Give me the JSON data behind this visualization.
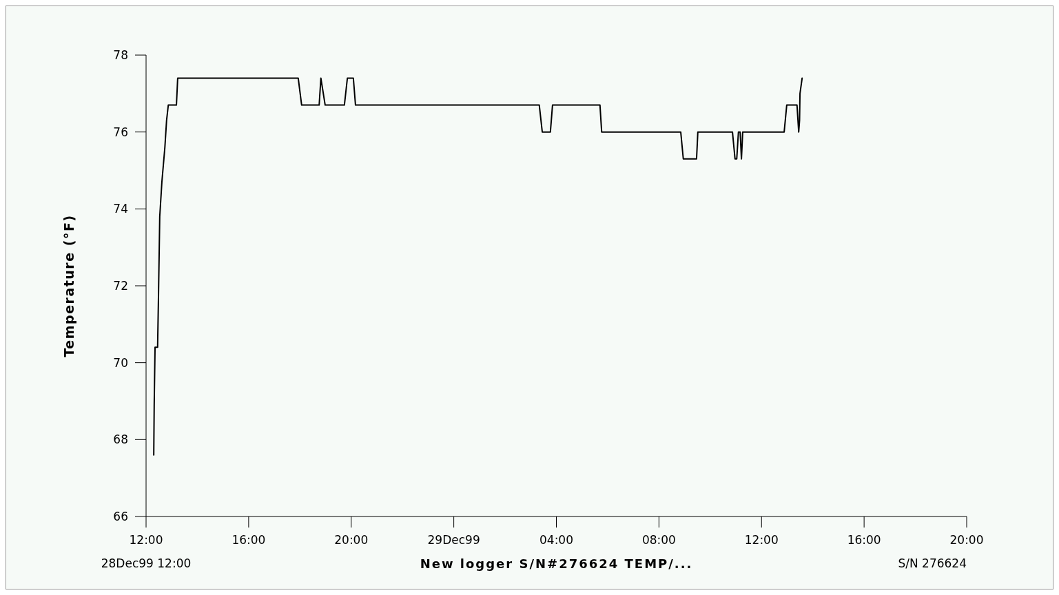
{
  "chart_data": {
    "type": "line",
    "xlabel": "New logger S/N#276624 TEMP/...",
    "ylabel": "Temperature (°F)",
    "annotations": [
      "28Dec99 12:00",
      "S/N 276624"
    ],
    "x": [
      "1999-12-28T12:18",
      "1999-12-28T12:19",
      "1999-12-28T12:21",
      "1999-12-28T12:27",
      "1999-12-28T12:29",
      "1999-12-28T12:32",
      "1999-12-28T12:37",
      "1999-12-28T12:44",
      "1999-12-28T12:48",
      "1999-12-28T12:52",
      "1999-12-28T13:11",
      "1999-12-28T13:14",
      "1999-12-28T17:56",
      "1999-12-28T18:04",
      "1999-12-28T18:45",
      "1999-12-28T18:49",
      "1999-12-28T18:59",
      "1999-12-28T19:44",
      "1999-12-28T19:51",
      "1999-12-28T20:05",
      "1999-12-28T20:10",
      "1999-12-29T03:20",
      "1999-12-29T03:27",
      "1999-12-29T03:46",
      "1999-12-29T03:51",
      "1999-12-29T05:42",
      "1999-12-29T05:46",
      "1999-12-29T08:51",
      "1999-12-29T08:57",
      "1999-12-29T09:28",
      "1999-12-29T09:31",
      "1999-12-29T10:52",
      "1999-12-29T10:58",
      "1999-12-29T11:02",
      "1999-12-29T11:06",
      "1999-12-29T11:10",
      "1999-12-29T11:13",
      "1999-12-29T11:16",
      "1999-12-29T12:53",
      "1999-12-29T12:59",
      "1999-12-29T13:23",
      "1999-12-29T13:27",
      "1999-12-29T13:29",
      "1999-12-29T13:30",
      "1999-12-29T13:35"
    ],
    "series": [
      {
        "color": "#000000",
        "values": [
          67.6,
          68.9,
          70.4,
          70.4,
          71.7,
          73.8,
          74.7,
          75.6,
          76.3,
          76.7,
          76.7,
          77.4,
          77.4,
          76.7,
          76.7,
          77.4,
          76.7,
          76.7,
          77.4,
          77.4,
          76.7,
          76.7,
          76.0,
          76.0,
          76.7,
          76.7,
          76.0,
          76.0,
          75.3,
          75.3,
          76.0,
          76.0,
          75.3,
          75.3,
          76.0,
          76.0,
          75.3,
          76.0,
          76.0,
          76.7,
          76.7,
          76.0,
          76.3,
          77.0,
          77.4
        ]
      }
    ],
    "xlim": [
      "1999-12-28T12:00",
      "1999-12-29T20:00"
    ],
    "xticks": [
      {
        "value": "1999-12-28T12:00",
        "label": "12:00"
      },
      {
        "value": "1999-12-28T16:00",
        "label": "16:00"
      },
      {
        "value": "1999-12-28T20:00",
        "label": "20:00"
      },
      {
        "value": "1999-12-29T00:00",
        "label": "29Dec99"
      },
      {
        "value": "1999-12-29T04:00",
        "label": "04:00"
      },
      {
        "value": "1999-12-29T08:00",
        "label": "08:00"
      },
      {
        "value": "1999-12-29T12:00",
        "label": "12:00"
      },
      {
        "value": "1999-12-29T16:00",
        "label": "16:00"
      },
      {
        "value": "1999-12-29T20:00",
        "label": "20:00"
      }
    ],
    "ylim": [
      66,
      78
    ],
    "yticks": [
      66,
      68,
      70,
      72,
      74,
      76,
      78
    ],
    "line_style": "solid"
  }
}
